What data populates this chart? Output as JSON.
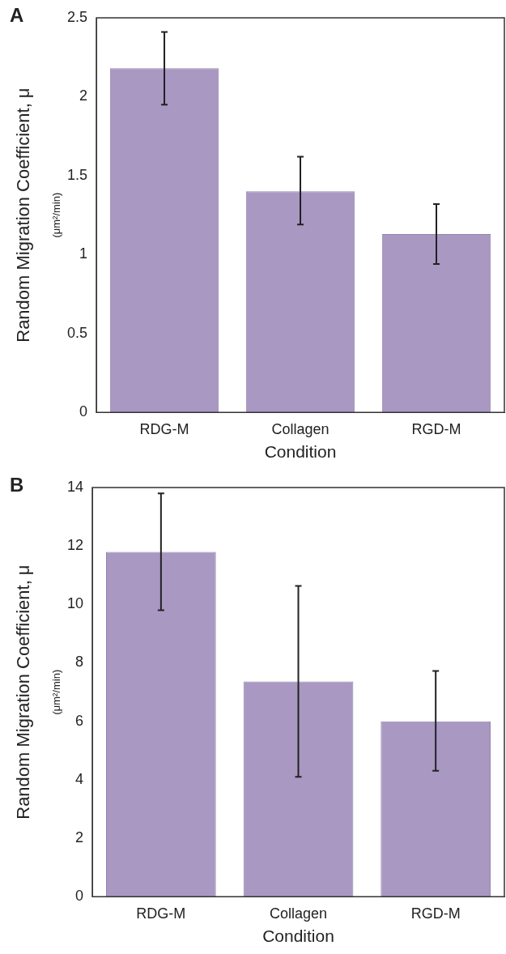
{
  "chart_data": [
    {
      "type": "bar",
      "title": "A",
      "categories": [
        "RDG-M",
        "Collagen",
        "RGD-M"
      ],
      "values": [
        2.18,
        1.4,
        1.13
      ],
      "color": "#a898c2",
      "errors": [
        [
          1.95,
          2.41
        ],
        [
          1.19,
          1.62
        ],
        [
          0.94,
          1.32
        ]
      ],
      "xlabel": "Condition",
      "ylabel": "Random Migration Coefficient, μ",
      "subtitle": "(μm²/min)",
      "ylim": [
        0,
        2.5
      ],
      "yticks": [
        0,
        0.5,
        1,
        1.5,
        2,
        2.5
      ],
      "grid": false,
      "legend": false
    },
    {
      "type": "bar",
      "title": "B",
      "categories": [
        "RDG-M",
        "Collagen",
        "RGD-M"
      ],
      "values": [
        11.8,
        7.36,
        6.0
      ],
      "color": "#a898c2",
      "errors": [
        [
          9.8,
          13.8
        ],
        [
          4.1,
          10.63
        ],
        [
          4.31,
          7.72
        ]
      ],
      "xlabel": "Condition",
      "ylabel": "Random Migration Coefficient, μ",
      "subtitle": "(μm²/min)",
      "ylim": [
        0,
        14
      ],
      "yticks": [
        0,
        2,
        4,
        6,
        8,
        10,
        12,
        14
      ],
      "grid": false,
      "legend": false
    }
  ]
}
